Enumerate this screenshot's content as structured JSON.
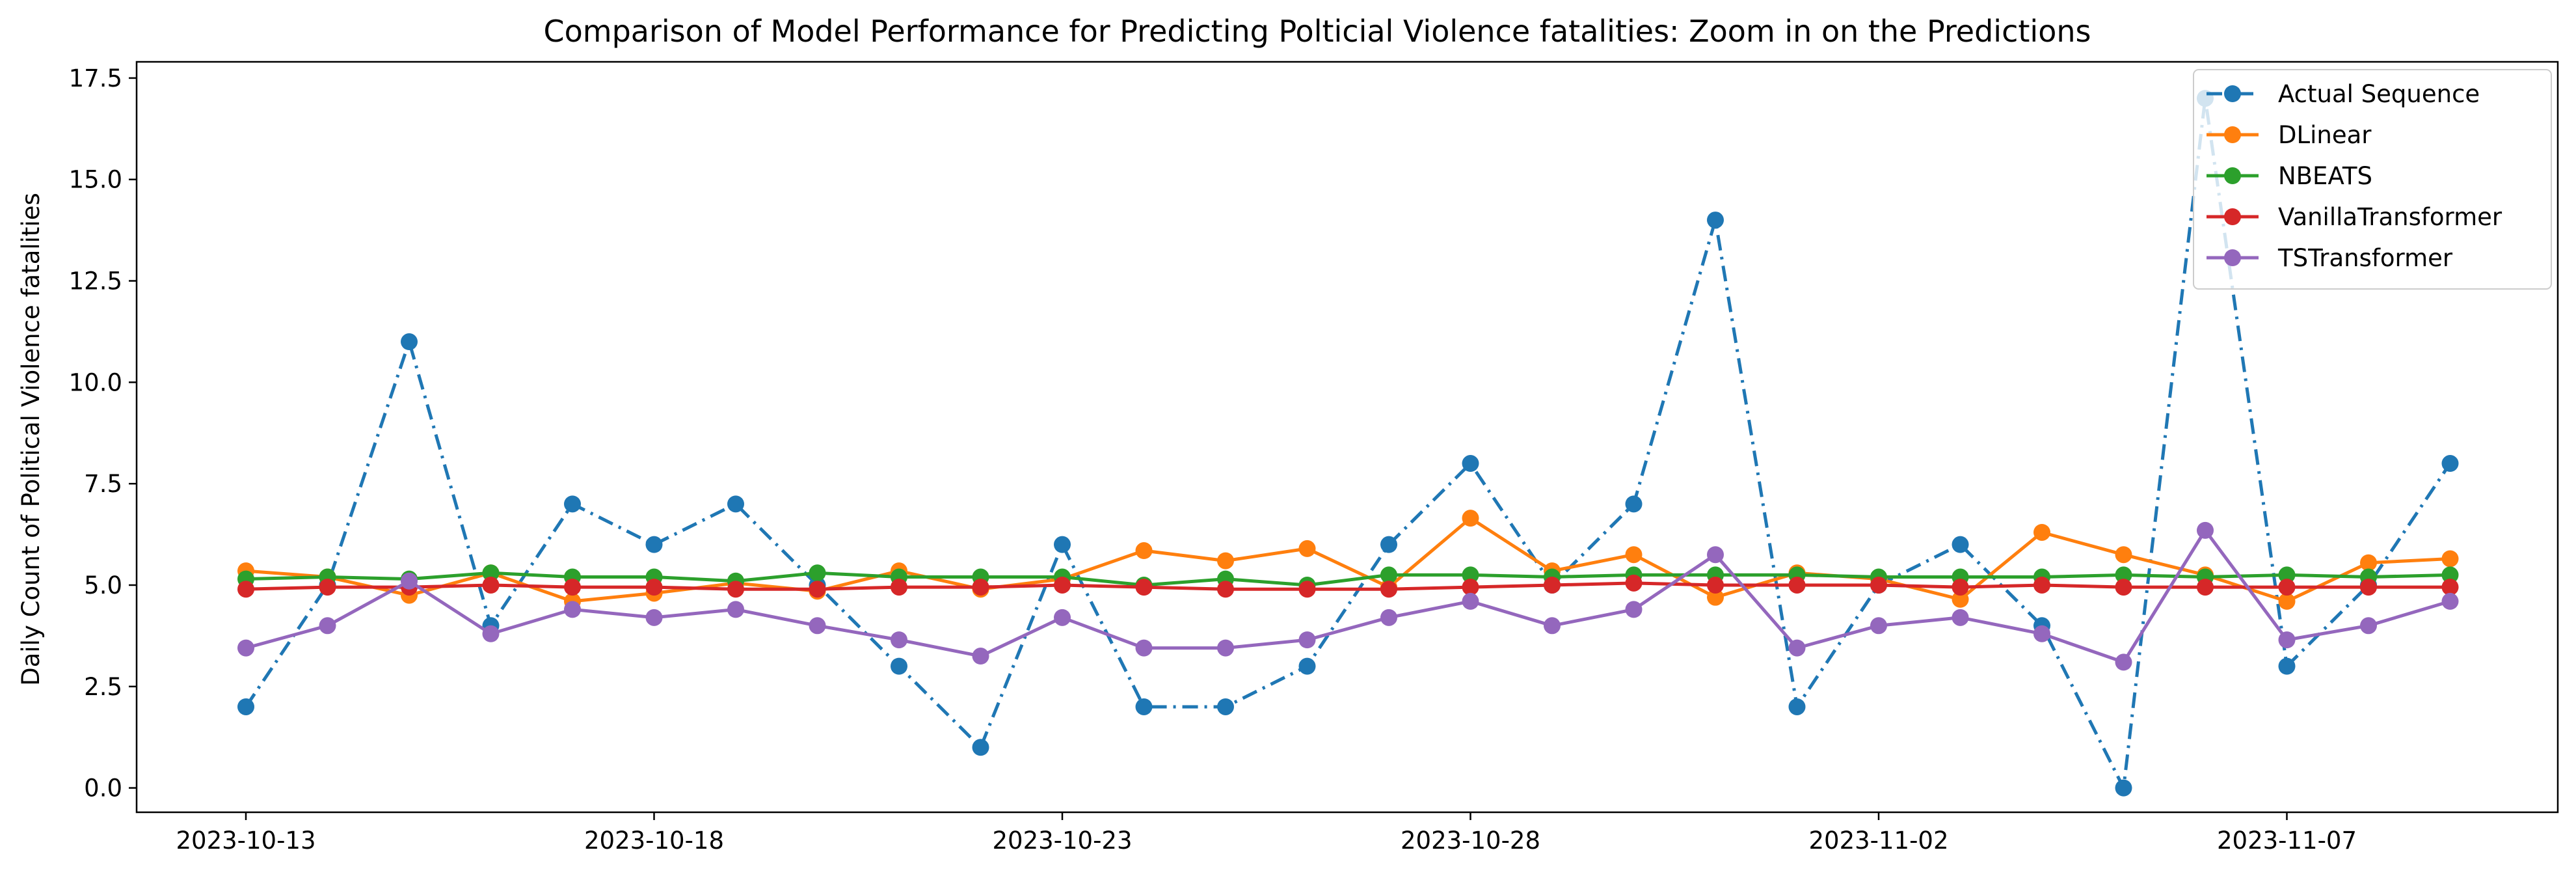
{
  "chart_data": {
    "type": "line",
    "title": "Comparison of Model Performance for Predicting Polticial Violence fatalities: Zoom in on the Predictions",
    "xlabel": "",
    "ylabel": "Daily Count of Political Violence fatalities",
    "x": [
      "2023-10-13",
      "2023-10-14",
      "2023-10-15",
      "2023-10-16",
      "2023-10-17",
      "2023-10-18",
      "2023-10-19",
      "2023-10-20",
      "2023-10-21",
      "2023-10-22",
      "2023-10-23",
      "2023-10-24",
      "2023-10-25",
      "2023-10-26",
      "2023-10-27",
      "2023-10-28",
      "2023-10-29",
      "2023-10-30",
      "2023-10-31",
      "2023-11-01",
      "2023-11-02",
      "2023-11-03",
      "2023-11-04",
      "2023-11-05",
      "2023-11-06",
      "2023-11-07",
      "2023-11-08",
      "2023-11-09"
    ],
    "x_ticks": [
      "2023-10-13",
      "2023-10-18",
      "2023-10-23",
      "2023-10-28",
      "2023-11-02",
      "2023-11-07"
    ],
    "y_ticks": [
      "0.0",
      "2.5",
      "5.0",
      "7.5",
      "10.0",
      "12.5",
      "15.0",
      "17.5"
    ],
    "ylim": [
      -0.6,
      17.9
    ],
    "grid": false,
    "legend_position": "top-right",
    "series": [
      {
        "name": "Actual Sequence",
        "color": "#1f77b4",
        "line_style": "dashdot",
        "values": [
          2,
          5,
          11,
          4,
          7,
          6,
          7,
          5,
          3,
          1,
          6,
          2,
          2,
          3,
          6,
          8,
          5,
          7,
          14,
          2,
          5,
          6,
          4,
          0,
          17,
          3,
          5,
          8
        ]
      },
      {
        "name": "DLinear",
        "color": "#ff7f0e",
        "line_style": "solid",
        "values": [
          5.35,
          5.2,
          4.75,
          5.3,
          4.6,
          4.8,
          5.05,
          4.85,
          5.35,
          4.9,
          5.15,
          5.85,
          5.6,
          5.9,
          4.95,
          6.65,
          5.35,
          5.75,
          4.7,
          5.3,
          5.15,
          4.65,
          6.3,
          5.75,
          5.25,
          4.6,
          5.55,
          5.65
        ]
      },
      {
        "name": "NBEATS",
        "color": "#2ca02c",
        "line_style": "solid",
        "values": [
          5.15,
          5.2,
          5.15,
          5.3,
          5.2,
          5.2,
          5.1,
          5.3,
          5.2,
          5.2,
          5.2,
          5.0,
          5.15,
          5.0,
          5.25,
          5.25,
          5.2,
          5.25,
          5.25,
          5.25,
          5.2,
          5.2,
          5.2,
          5.25,
          5.2,
          5.25,
          5.2,
          5.25
        ]
      },
      {
        "name": "VanillaTransformer",
        "color": "#d62728",
        "line_style": "solid",
        "values": [
          4.9,
          4.95,
          4.95,
          5.0,
          4.95,
          4.95,
          4.9,
          4.9,
          4.95,
          4.95,
          5.0,
          4.95,
          4.9,
          4.9,
          4.9,
          4.95,
          5.0,
          5.05,
          5.0,
          5.0,
          5.0,
          4.95,
          5.0,
          4.95,
          4.95,
          4.95,
          4.95,
          4.95
        ]
      },
      {
        "name": "TSTransformer",
        "color": "#9467bd",
        "line_style": "solid",
        "values": [
          3.45,
          4.0,
          5.1,
          3.8,
          4.4,
          4.2,
          4.4,
          4.0,
          3.65,
          3.25,
          4.2,
          3.45,
          3.45,
          3.65,
          4.2,
          4.6,
          4.0,
          4.4,
          5.75,
          3.45,
          4.0,
          4.2,
          3.8,
          3.1,
          6.35,
          3.65,
          4.0,
          4.6
        ]
      }
    ]
  }
}
